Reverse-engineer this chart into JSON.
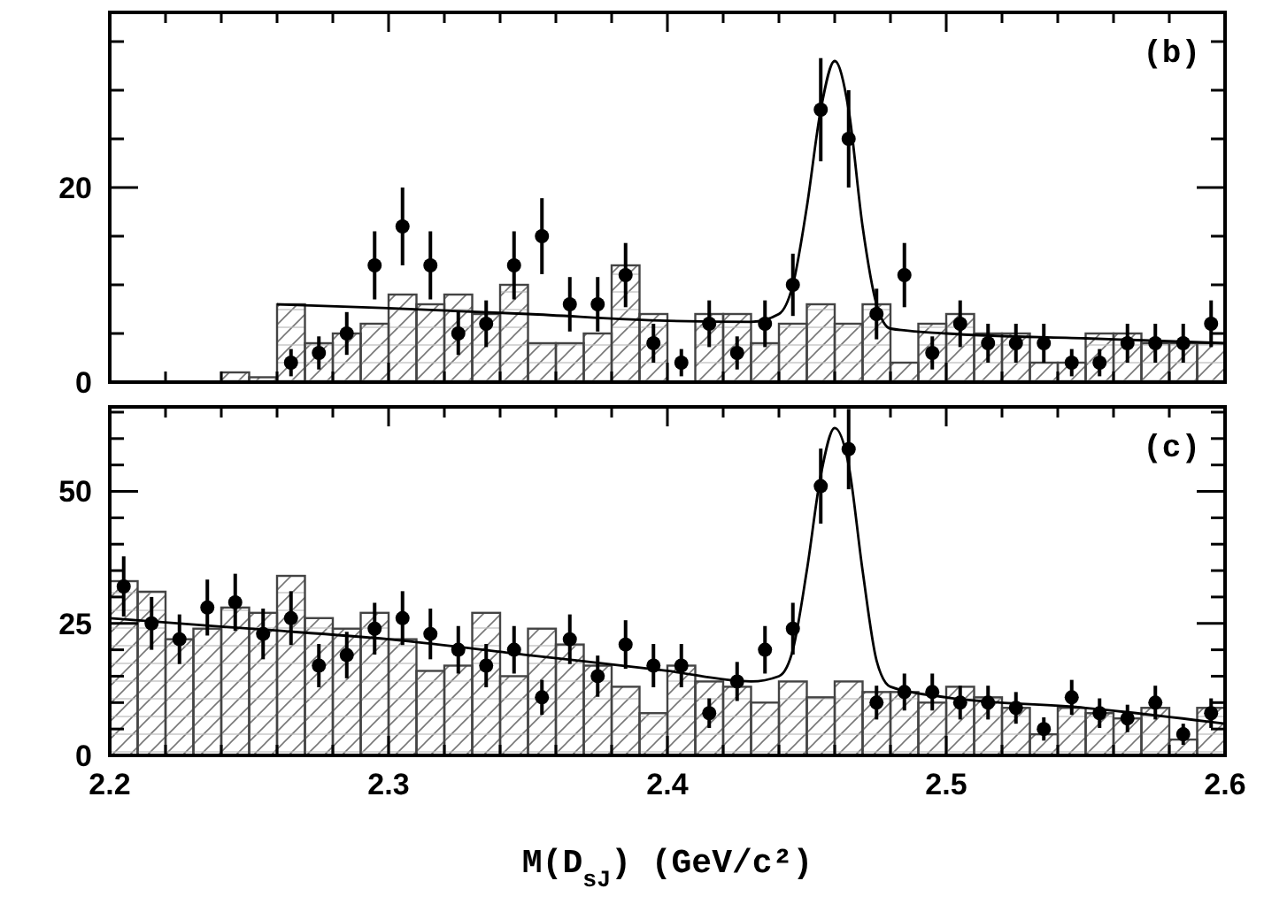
{
  "chart_data": [
    {
      "type": "histogram",
      "annotations": [
        "(b)"
      ],
      "xlim": [
        2.2,
        2.6
      ],
      "ylim": [
        0,
        38
      ],
      "tick_labels": "y",
      "grid": false,
      "xticks": [
        2.2,
        {
          "value": 2.22,
          "label": null
        },
        {
          "value": 2.24,
          "label": null
        },
        {
          "value": 2.26,
          "label": null
        },
        {
          "value": 2.28,
          "label": null
        },
        2.3,
        {
          "value": 2.32,
          "label": null
        },
        {
          "value": 2.34,
          "label": null
        },
        {
          "value": 2.36,
          "label": null
        },
        {
          "value": 2.38,
          "label": null
        },
        2.4,
        {
          "value": 2.42,
          "label": null
        },
        {
          "value": 2.44,
          "label": null
        },
        {
          "value": 2.46,
          "label": null
        },
        {
          "value": 2.48,
          "label": null
        },
        2.5,
        {
          "value": 2.52,
          "label": null
        },
        {
          "value": 2.54,
          "label": null
        },
        {
          "value": 2.56,
          "label": null
        },
        {
          "value": 2.58,
          "label": null
        },
        2.6
      ],
      "yticks": [
        0,
        {
          "value": 5,
          "label": null
        },
        {
          "value": 10,
          "label": null
        },
        {
          "value": 15,
          "label": null
        },
        20,
        {
          "value": 25,
          "label": null
        },
        {
          "value": 30,
          "label": null
        },
        {
          "value": 35,
          "label": null
        }
      ],
      "bins": [
        2.2,
        2.21,
        2.22,
        2.23,
        2.24,
        2.25,
        2.26,
        2.27,
        2.28,
        2.29,
        2.3,
        2.31,
        2.32,
        2.33,
        2.34,
        2.35,
        2.36,
        2.37,
        2.38,
        2.39,
        2.4,
        2.41,
        2.42,
        2.43,
        2.44,
        2.45,
        2.46,
        2.47,
        2.48,
        2.49,
        2.5,
        2.51,
        2.52,
        2.53,
        2.54,
        2.55,
        2.56,
        2.57,
        2.58,
        2.59,
        2.6
      ],
      "series": [
        {
          "color": "#444444",
          "values": [
            0,
            0,
            0,
            0,
            1,
            0.5,
            8,
            4,
            5,
            6,
            9,
            8,
            9,
            7,
            10,
            4,
            4,
            5,
            12,
            7,
            0,
            7,
            7,
            4,
            6,
            8,
            6,
            8,
            2,
            6,
            7,
            5,
            5,
            2,
            2,
            5,
            5,
            4,
            4,
            4
          ]
        },
        {
          "type": "scatter",
          "marker": "circle",
          "color": "#000000",
          "x": [
            2.265,
            2.275,
            2.285,
            2.295,
            2.305,
            2.315,
            2.325,
            2.335,
            2.345,
            2.355,
            2.365,
            2.375,
            2.385,
            2.395,
            2.405,
            2.415,
            2.425,
            2.435,
            2.445,
            2.455,
            2.465,
            2.475,
            2.485,
            2.495,
            2.505,
            2.515,
            2.525,
            2.535,
            2.545,
            2.555,
            2.565,
            2.575,
            2.585,
            2.595
          ],
          "values": [
            2,
            3,
            5,
            12,
            16,
            12,
            5,
            6,
            12,
            15,
            8,
            8,
            11,
            4,
            2,
            6,
            3,
            6,
            10,
            28,
            25,
            7,
            11,
            3,
            6,
            4,
            4,
            4,
            2,
            2,
            4,
            4,
            4,
            6
          ],
          "errors": [
            1.4,
            1.7,
            2.2,
            3.5,
            4,
            3.5,
            2.2,
            2.4,
            3.5,
            3.9,
            2.8,
            2.8,
            3.3,
            2,
            1.4,
            2.4,
            1.7,
            2.4,
            3.2,
            5.3,
            5,
            2.6,
            3.3,
            1.7,
            2.4,
            2,
            2,
            2,
            1.4,
            1.4,
            2,
            2,
            2,
            2.4
          ]
        },
        {
          "type": "line",
          "color": "#000000",
          "x": [
            2.26,
            2.3,
            2.35,
            2.4,
            2.43,
            2.44,
            2.445,
            2.45,
            2.455,
            2.46,
            2.465,
            2.47,
            2.475,
            2.48,
            2.5,
            2.55,
            2.6
          ],
          "values": [
            8,
            7.6,
            7,
            6.3,
            6.2,
            7,
            10,
            18,
            28,
            33,
            28,
            16,
            8,
            5.5,
            5,
            4.5,
            4
          ]
        }
      ]
    },
    {
      "type": "histogram",
      "annotations": [
        "(c)"
      ],
      "xlabel": "M(D$_{sJ}$)  (GeV/c²)",
      "xlim": [
        2.2,
        2.6
      ],
      "ylim": [
        0,
        66
      ],
      "grid": false,
      "xticks": [
        2.2,
        {
          "value": 2.22,
          "label": null
        },
        {
          "value": 2.24,
          "label": null
        },
        {
          "value": 2.26,
          "label": null
        },
        {
          "value": 2.28,
          "label": null
        },
        2.3,
        {
          "value": 2.32,
          "label": null
        },
        {
          "value": 2.34,
          "label": null
        },
        {
          "value": 2.36,
          "label": null
        },
        {
          "value": 2.38,
          "label": null
        },
        2.4,
        {
          "value": 2.42,
          "label": null
        },
        {
          "value": 2.44,
          "label": null
        },
        {
          "value": 2.46,
          "label": null
        },
        {
          "value": 2.48,
          "label": null
        },
        2.5,
        {
          "value": 2.52,
          "label": null
        },
        {
          "value": 2.54,
          "label": null
        },
        {
          "value": 2.56,
          "label": null
        },
        {
          "value": 2.58,
          "label": null
        },
        2.6
      ],
      "yticks": [
        0,
        {
          "value": 5,
          "label": null
        },
        {
          "value": 10,
          "label": null
        },
        {
          "value": 15,
          "label": null
        },
        {
          "value": 20,
          "label": null
        },
        25,
        {
          "value": 30,
          "label": null
        },
        {
          "value": 35,
          "label": null
        },
        {
          "value": 40,
          "label": null
        },
        {
          "value": 45,
          "label": null
        },
        50,
        {
          "value": 55,
          "label": null
        },
        {
          "value": 60,
          "label": null
        },
        {
          "value": 65,
          "label": null
        }
      ],
      "bins": [
        2.2,
        2.21,
        2.22,
        2.23,
        2.24,
        2.25,
        2.26,
        2.27,
        2.28,
        2.29,
        2.3,
        2.31,
        2.32,
        2.33,
        2.34,
        2.35,
        2.36,
        2.37,
        2.38,
        2.39,
        2.4,
        2.41,
        2.42,
        2.43,
        2.44,
        2.45,
        2.46,
        2.47,
        2.48,
        2.49,
        2.5,
        2.51,
        2.52,
        2.53,
        2.54,
        2.55,
        2.56,
        2.57,
        2.58,
        2.59,
        2.6
      ],
      "series": [
        {
          "color": "#444444",
          "values": [
            33,
            31,
            22,
            24,
            28,
            27,
            34,
            26,
            24,
            27,
            22,
            16,
            17,
            27,
            15,
            24,
            21,
            17,
            13,
            8,
            17,
            14,
            13,
            10,
            14,
            11,
            14,
            12,
            12,
            10,
            13,
            11,
            9,
            4,
            9,
            8,
            7,
            9,
            3,
            9
          ]
        },
        {
          "type": "scatter",
          "marker": "circle",
          "color": "#000000",
          "x": [
            2.205,
            2.215,
            2.225,
            2.235,
            2.245,
            2.255,
            2.265,
            2.275,
            2.285,
            2.295,
            2.305,
            2.315,
            2.325,
            2.335,
            2.345,
            2.355,
            2.365,
            2.375,
            2.385,
            2.395,
            2.405,
            2.415,
            2.425,
            2.435,
            2.445,
            2.455,
            2.465,
            2.475,
            2.485,
            2.495,
            2.505,
            2.515,
            2.525,
            2.535,
            2.545,
            2.555,
            2.565,
            2.575,
            2.585,
            2.595
          ],
          "values": [
            32,
            25,
            22,
            28,
            29,
            23,
            26,
            17,
            19,
            24,
            26,
            23,
            20,
            17,
            20,
            11,
            22,
            15,
            21,
            17,
            17,
            8,
            14,
            20,
            24,
            51,
            58,
            10,
            12,
            12,
            10,
            10,
            9,
            5,
            11,
            8,
            7,
            10,
            4,
            8
          ],
          "errors": [
            5.7,
            5,
            4.7,
            5.3,
            5.4,
            4.8,
            5.1,
            4.1,
            4.4,
            4.9,
            5.1,
            4.8,
            4.5,
            4.1,
            4.5,
            3.3,
            4.7,
            3.9,
            4.6,
            4.1,
            4.1,
            2.8,
            3.7,
            4.5,
            4.9,
            7.1,
            7.6,
            3.2,
            3.5,
            3.5,
            3.2,
            3.2,
            3,
            2.2,
            3.3,
            2.8,
            2.6,
            3.2,
            2,
            2.8
          ]
        },
        {
          "type": "line",
          "color": "#000000",
          "x": [
            2.2,
            2.25,
            2.3,
            2.35,
            2.4,
            2.43,
            2.44,
            2.445,
            2.45,
            2.455,
            2.46,
            2.465,
            2.47,
            2.475,
            2.48,
            2.5,
            2.55,
            2.6
          ],
          "values": [
            26,
            24,
            22,
            19,
            16,
            14,
            15,
            20,
            35,
            53,
            62,
            55,
            35,
            18,
            13,
            11,
            9,
            6
          ]
        }
      ]
    }
  ]
}
